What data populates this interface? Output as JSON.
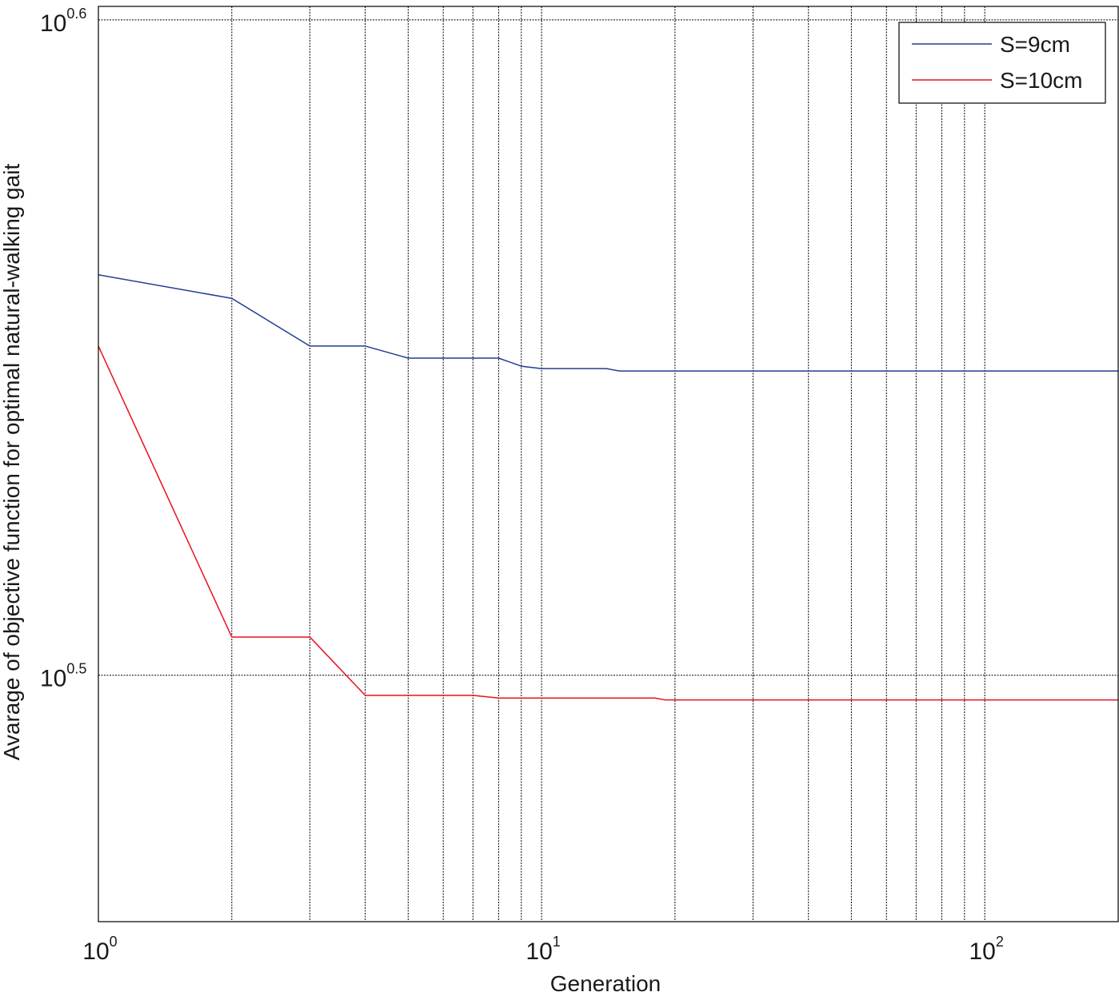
{
  "chart_data": {
    "type": "line",
    "xlabel": "Generation",
    "ylabel": "Avarage of objective function for optimal natural-walking gait",
    "x_scale": "log",
    "y_scale": "log",
    "xlim": [
      1,
      200
    ],
    "ylim": [
      2.9,
      4.0
    ],
    "x_ticks": [
      {
        "value": 1,
        "base": "10",
        "exp": "0"
      },
      {
        "value": 10,
        "base": "10",
        "exp": "1"
      },
      {
        "value": 100,
        "base": "10",
        "exp": "2"
      }
    ],
    "y_ticks": [
      {
        "value": 3.1623,
        "base": "10",
        "exp": "0.5"
      },
      {
        "value": 3.9811,
        "base": "10",
        "exp": "0.6"
      }
    ],
    "grid": true,
    "legend_position": "top-right",
    "series": [
      {
        "name": "S=9cm",
        "color": "#1f3f8f",
        "x": [
          1,
          2,
          3,
          4,
          5,
          6,
          7,
          8,
          9,
          10,
          14,
          15,
          20,
          30,
          50,
          100,
          200
        ],
        "y": [
          3.64,
          3.61,
          3.55,
          3.55,
          3.535,
          3.535,
          3.535,
          3.535,
          3.525,
          3.522,
          3.522,
          3.519,
          3.519,
          3.519,
          3.519,
          3.519,
          3.519
        ]
      },
      {
        "name": "S=10cm",
        "color": "#e8101c",
        "x": [
          1,
          2,
          3,
          4,
          5,
          6,
          7,
          8,
          10,
          15,
          18,
          19,
          20,
          30,
          50,
          100,
          200
        ],
        "y": [
          3.55,
          3.205,
          3.205,
          3.14,
          3.14,
          3.14,
          3.14,
          3.137,
          3.137,
          3.137,
          3.137,
          3.135,
          3.135,
          3.135,
          3.135,
          3.135,
          3.135
        ]
      }
    ]
  }
}
